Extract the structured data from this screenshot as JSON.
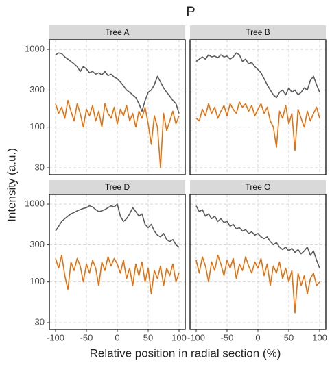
{
  "chart_data": {
    "type": "line",
    "title": "P",
    "x_label": "Relative position in radial section (%)",
    "y_label": "Intensity (a.u.)",
    "log_y": true,
    "grid": true,
    "xlim": [
      -110,
      110
    ],
    "xticks": [
      -100,
      -50,
      0,
      50,
      100
    ],
    "ylim": [
      24.5,
      1330
    ],
    "yticks": [
      30,
      100,
      300,
      1000
    ],
    "x": [
      -100,
      -95,
      -90,
      -85,
      -80,
      -75,
      -70,
      -65,
      -60,
      -55,
      -50,
      -45,
      -40,
      -35,
      -30,
      -25,
      -20,
      -15,
      -10,
      -5,
      0,
      5,
      10,
      15,
      20,
      25,
      30,
      35,
      40,
      45,
      50,
      55,
      60,
      65,
      70,
      75,
      80,
      85,
      90,
      95,
      100
    ],
    "panels": [
      {
        "title": "Tree A",
        "series": [
          {
            "color": "#5a5a5a",
            "values": [
              850,
              900,
              880,
              800,
              750,
              700,
              650,
              600,
              520,
              600,
              560,
              500,
              520,
              480,
              500,
              470,
              520,
              460,
              480,
              440,
              420,
              380,
              340,
              300,
              280,
              260,
              240,
              200,
              160,
              220,
              280,
              300,
              350,
              450,
              380,
              320,
              280,
              250,
              220,
              200,
              150
            ]
          },
          {
            "color": "#e5700e",
            "values": [
              200,
              150,
              180,
              130,
              220,
              160,
              120,
              200,
              150,
              100,
              170,
              140,
              190,
              120,
              160,
              100,
              200,
              150,
              130,
              180,
              110,
              170,
              140,
              190,
              120,
              150,
              100,
              160,
              130,
              180,
              110,
              60,
              140,
              100,
              30,
              150,
              90,
              120,
              160,
              110,
              140
            ]
          }
        ]
      },
      {
        "title": "Tree B",
        "series": [
          {
            "color": "#5a5a5a",
            "values": [
              700,
              750,
              800,
              750,
              850,
              800,
              820,
              780,
              850,
              800,
              820,
              750,
              800,
              900,
              850,
              700,
              750,
              650,
              680,
              600,
              550,
              500,
              420,
              350,
              300,
              260,
              240,
              280,
              300,
              260,
              320,
              280,
              300,
              260,
              280,
              320,
              300,
              400,
              450,
              350,
              280
            ]
          },
          {
            "color": "#e5700e",
            "values": [
              130,
              120,
              170,
              140,
              200,
              150,
              180,
              130,
              160,
              190,
              140,
              200,
              170,
              150,
              210,
              180,
              200,
              160,
              190,
              140,
              170,
              200,
              150,
              180,
              120,
              100,
              55,
              160,
              130,
              190,
              110,
              150,
              50,
              170,
              130,
              100,
              160,
              120,
              150,
              180,
              130
            ]
          }
        ]
      },
      {
        "title": "Tree D",
        "series": [
          {
            "color": "#5a5a5a",
            "values": [
              450,
              520,
              600,
              650,
              700,
              750,
              780,
              820,
              850,
              880,
              900,
              950,
              920,
              850,
              800,
              820,
              850,
              900,
              950,
              920,
              1000,
              700,
              600,
              650,
              750,
              900,
              800,
              700,
              750,
              550,
              500,
              550,
              450,
              400,
              380,
              420,
              350,
              330,
              350,
              300,
              280
            ]
          },
          {
            "color": "#e5700e",
            "values": [
              200,
              150,
              220,
              120,
              80,
              180,
              140,
              200,
              160,
              100,
              170,
              130,
              190,
              150,
              90,
              180,
              140,
              210,
              160,
              200,
              170,
              130,
              190,
              110,
              150,
              90,
              170,
              120,
              180,
              100,
              150,
              70,
              140,
              110,
              160,
              90,
              150,
              120,
              170,
              100,
              130
            ]
          }
        ]
      },
      {
        "title": "Tree O",
        "series": [
          {
            "color": "#5a5a5a",
            "values": [
              950,
              800,
              850,
              700,
              750,
              650,
              700,
              600,
              650,
              580,
              600,
              520,
              550,
              480,
              500,
              450,
              470,
              420,
              440,
              400,
              420,
              380,
              360,
              380,
              330,
              300,
              320,
              280,
              260,
              280,
              250,
              270,
              240,
              260,
              230,
              250,
              280,
              220,
              250,
              190,
              150
            ]
          },
          {
            "color": "#e5700e",
            "values": [
              190,
              130,
              210,
              160,
              100,
              180,
              140,
              220,
              170,
              120,
              190,
              150,
              200,
              110,
              170,
              140,
              210,
              160,
              130,
              180,
              150,
              200,
              120,
              170,
              90,
              160,
              130,
              180,
              110,
              150,
              100,
              140,
              40,
              130,
              90,
              120,
              70,
              110,
              130,
              90,
              100
            ]
          }
        ]
      }
    ]
  }
}
